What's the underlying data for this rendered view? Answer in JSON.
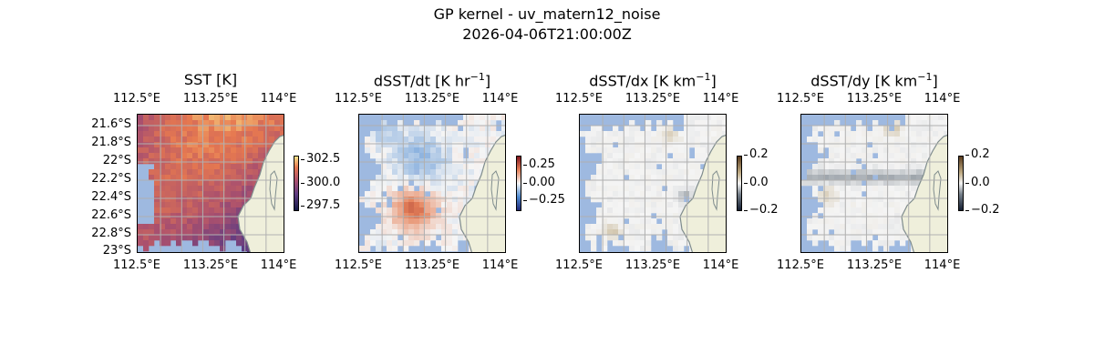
{
  "figure": {
    "title_line1": "GP kernel - uv_matern12_noise",
    "title_line2": "2026-04-06T21:00:00Z"
  },
  "colors": {
    "land": "#efefdb",
    "ocean_mask": "#9eb9e0",
    "coast": "#7f8c8d",
    "grid": "#b0b0b0"
  },
  "chart_data": [
    {
      "type": "heatmap",
      "title": "SST [K]",
      "x_ticks": [
        "112.5°E",
        "113.25°E",
        "114°E"
      ],
      "y_ticks": [
        "21.6°S",
        "21.8°S",
        "22°S",
        "22.2°S",
        "22.4°S",
        "22.6°S",
        "22.8°S",
        "23°S"
      ],
      "colorbar": {
        "ticks": [
          "302.5",
          "300.0",
          "297.5"
        ],
        "range": [
          297.0,
          303.0
        ],
        "cmap": "thermal"
      },
      "grid": true
    },
    {
      "type": "heatmap",
      "title": "dSST/dt [K hr",
      "title_sup": "−1",
      "title_end": "]",
      "x_ticks": [
        "112.5°E",
        "113.25°E",
        "114°E"
      ],
      "colorbar": {
        "ticks": [
          "0.25",
          "0.00",
          "−0.25"
        ],
        "range": [
          -0.4,
          0.4
        ],
        "cmap": "balance"
      },
      "grid": true
    },
    {
      "type": "heatmap",
      "title": "dSST/dx [K km",
      "title_sup": "−1",
      "title_end": "]",
      "x_ticks": [
        "112.5°E",
        "113.25°E",
        "114°E"
      ],
      "colorbar": {
        "ticks": [
          "0.2",
          "0.0",
          "−0.2"
        ],
        "range": [
          -0.2,
          0.2
        ],
        "cmap": "diff"
      },
      "grid": true
    },
    {
      "type": "heatmap",
      "title": "dSST/dy [K km",
      "title_sup": "−1",
      "title_end": "]",
      "x_ticks": [
        "112.5°E",
        "113.25°E",
        "114°E"
      ],
      "colorbar": {
        "ticks": [
          "0.2",
          "0.0",
          "−0.2"
        ],
        "range": [
          -0.2,
          0.2
        ],
        "cmap": "diff"
      },
      "grid": true
    }
  ]
}
